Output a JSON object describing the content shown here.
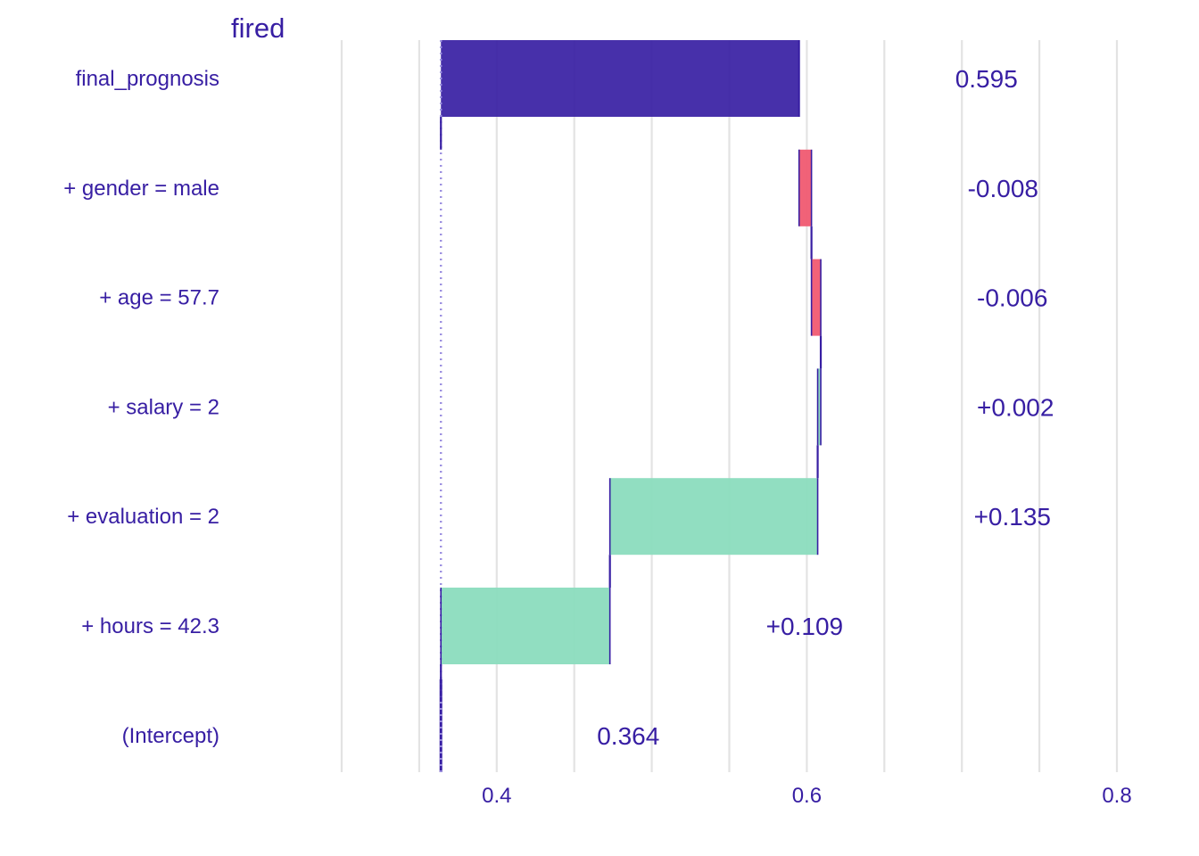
{
  "chart_data": {
    "type": "waterfall",
    "title": "fired",
    "xlabel": "",
    "ylabel": "",
    "xlim": [
      0.3,
      0.8
    ],
    "xticks": [
      0.4,
      0.6,
      0.8
    ],
    "xtick_labels": [
      "0.4",
      "0.6",
      "0.8"
    ],
    "grid": true,
    "intercept": 0.364,
    "prediction": 0.595,
    "rows": [
      {
        "label": "final_prognosis",
        "kind": "prediction",
        "start": 0.364,
        "end": 0.595,
        "value_label": "0.595"
      },
      {
        "label": "+ gender = male",
        "kind": "negative",
        "start": 0.603,
        "end": 0.595,
        "value_label": "-0.008"
      },
      {
        "label": "+ age = 57.7",
        "kind": "negative",
        "start": 0.609,
        "end": 0.603,
        "value_label": "-0.006"
      },
      {
        "label": "+ salary = 2",
        "kind": "positive",
        "start": 0.607,
        "end": 0.609,
        "value_label": "+0.002"
      },
      {
        "label": "+ evaluation = 2",
        "kind": "positive",
        "start": 0.473,
        "end": 0.607,
        "value_label": "+0.135"
      },
      {
        "label": "+ hours = 42.3",
        "kind": "positive",
        "start": 0.364,
        "end": 0.473,
        "value_label": "+0.109"
      },
      {
        "label": "(Intercept)",
        "kind": "intercept",
        "start": 0.364,
        "end": 0.364,
        "value_label": "0.364"
      }
    ],
    "colors": {
      "prediction": "#371ea3",
      "negative": "#f05a71",
      "positive": "#8bdcbe",
      "text": "#371ea3",
      "grid": "#e3e3e3",
      "baseline": "#9b8fe0"
    }
  }
}
